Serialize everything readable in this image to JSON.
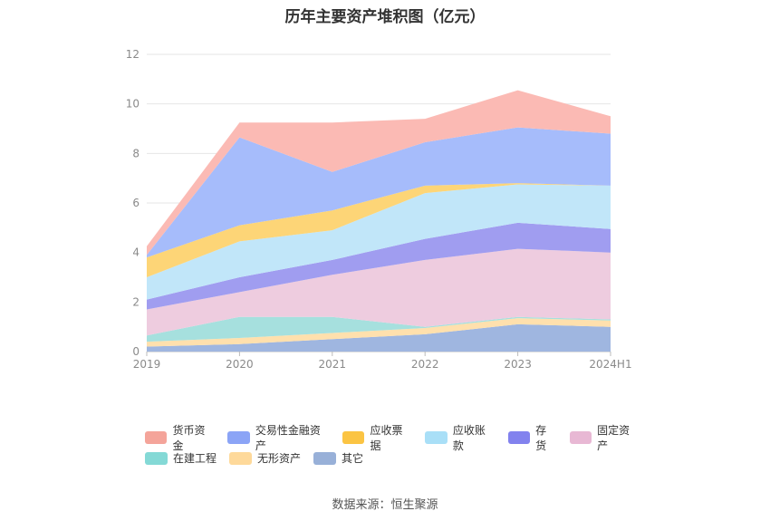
{
  "title": "历年主要资产堆积图（亿元）",
  "source": "数据来源：恒生聚源",
  "chart_data": {
    "type": "area",
    "stacked": true,
    "categories": [
      "2019",
      "2020",
      "2021",
      "2022",
      "2023",
      "2024H1"
    ],
    "ylim": [
      0,
      12
    ],
    "yticks": [
      0,
      2,
      4,
      6,
      8,
      10,
      12
    ],
    "grid": true,
    "legend_position": "bottom",
    "series": [
      {
        "name": "其它",
        "color": "#9fb6e0",
        "values": [
          0.2,
          0.3,
          0.5,
          0.7,
          1.1,
          1.0
        ]
      },
      {
        "name": "无形资产",
        "color": "#ffe0ad",
        "values": [
          0.2,
          0.25,
          0.25,
          0.25,
          0.25,
          0.25
        ]
      },
      {
        "name": "在建工程",
        "color": "#a6e0de",
        "values": [
          0.25,
          0.85,
          0.65,
          0.05,
          0.05,
          0.05
        ]
      },
      {
        "name": "固定资产",
        "color": "#eeccdf",
        "values": [
          1.05,
          1.0,
          1.7,
          2.7,
          2.75,
          2.7
        ]
      },
      {
        "name": "存货",
        "color": "#a09df0",
        "values": [
          0.4,
          0.6,
          0.6,
          0.85,
          1.05,
          0.95
        ]
      },
      {
        "name": "应收账款",
        "color": "#c1e6f9",
        "values": [
          0.9,
          1.45,
          1.2,
          1.85,
          1.55,
          1.75
        ]
      },
      {
        "name": "应收票据",
        "color": "#fdd577",
        "values": [
          0.8,
          0.65,
          0.8,
          0.3,
          0.05,
          0.0
        ]
      },
      {
        "name": "交易性金融资产",
        "color": "#a6bcfb",
        "values": [
          0.1,
          3.55,
          1.55,
          1.75,
          2.25,
          2.1
        ]
      },
      {
        "name": "货币资金",
        "color": "#fbbab4",
        "values": [
          0.35,
          0.6,
          2.0,
          0.95,
          1.5,
          0.7
        ]
      }
    ]
  },
  "legend": [
    {
      "label": "货币资金",
      "color": "#f4a49a"
    },
    {
      "label": "交易性金融资产",
      "color": "#8ba4f6"
    },
    {
      "label": "应收票据",
      "color": "#fbc443"
    },
    {
      "label": "应收账款",
      "color": "#a9dff7"
    },
    {
      "label": "存货",
      "color": "#8282ee"
    },
    {
      "label": "固定资产",
      "color": "#e8b8d4"
    },
    {
      "label": "在建工程",
      "color": "#84d9d6"
    },
    {
      "label": "无形资产",
      "color": "#fed99a"
    },
    {
      "label": "其它",
      "color": "#98b0d8"
    }
  ]
}
